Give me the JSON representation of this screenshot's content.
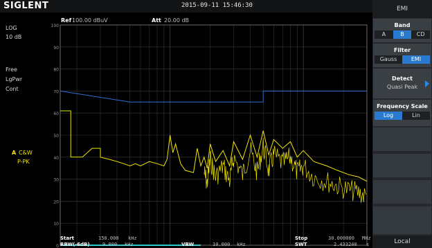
{
  "header": {
    "brand": "SIGLENT",
    "datetime": "2015-09-11  15:46:30",
    "ref_label": "Ref",
    "ref_value": "100.00 dBuV",
    "att_label": "Att",
    "att_value": "20.00 dB"
  },
  "left": {
    "scale_type": "LOG",
    "scale_div": "10 dB",
    "trig": "Free",
    "avg": "LgPwr",
    "sweep": "Cont",
    "trace_letter": "A",
    "trace_mode1": "C&W",
    "trace_mode2": "P-PK"
  },
  "sidebar": {
    "title": "EMI",
    "band": {
      "title": "Band",
      "options": [
        "A",
        "B",
        "CD"
      ],
      "selected": 1
    },
    "filter": {
      "title": "Filter",
      "options": [
        "Gauss",
        "EMI"
      ],
      "selected": 1
    },
    "detect": {
      "title": "Detect",
      "value": "Quasi Peak"
    },
    "freq_scale": {
      "title": "Frequency Scale",
      "options": [
        "Log",
        "Lin"
      ],
      "selected": 0
    },
    "footer": "Local"
  },
  "bottom": {
    "start_label": "Start",
    "start_value": "150.000",
    "start_unit": "kHz",
    "stop_label": "Stop",
    "stop_value": "30.000000",
    "stop_unit": "MHz",
    "rbw_label": "RBW(-6dB)",
    "rbw_value": "9.000",
    "rbw_unit": "kHz",
    "vbw_label": "VBW",
    "vbw_value": "10.000",
    "vbw_unit": "kHz",
    "swt_label": "SWT",
    "swt_value": "2.433240",
    "swt_unit": "s"
  },
  "chart_data": {
    "type": "line",
    "x_scale": "log",
    "x_range_hz": [
      150000,
      30000000
    ],
    "y_range_dbuv": [
      0,
      100
    ],
    "y_ticks": [
      "100",
      "90",
      "80",
      "70",
      "60",
      "50",
      "40",
      "30",
      "20",
      "10",
      "0"
    ],
    "grid": true,
    "series": [
      {
        "color": "#2f6fd6",
        "x_hz": [
          150000,
          500000,
          500000,
          5000000,
          5000000,
          30000000
        ],
        "y_dbuv": [
          70,
          65,
          65,
          65,
          70,
          70
        ]
      },
      {
        "color": "#f2e600",
        "x_hz": [
          150000,
          180000,
          180000,
          220000,
          260000,
          300000,
          300000,
          350000,
          400000,
          450000,
          500000,
          550000,
          600000,
          700000,
          800000,
          900000,
          950000,
          1000000,
          1050000,
          1100000,
          1200000,
          1300000,
          1500000,
          1600000,
          1700000,
          1800000,
          1900000,
          2000000,
          2200000,
          2500000,
          2800000,
          3000000,
          3500000,
          4000000,
          4500000,
          5000000,
          5500000,
          6000000,
          7000000,
          8000000,
          9000000,
          10000000,
          12000000,
          15000000,
          18000000,
          22000000,
          26000000,
          30000000
        ],
        "y_dbuv": [
          61,
          61,
          40,
          40,
          44,
          44,
          40,
          39,
          38,
          37,
          36,
          37,
          36,
          38,
          37,
          36,
          39,
          50,
          42,
          46,
          37,
          34,
          33,
          44,
          36,
          40,
          35,
          46,
          38,
          43,
          36,
          47,
          39,
          50,
          40,
          52,
          41,
          48,
          44,
          47,
          40,
          43,
          38,
          36,
          34,
          32,
          31,
          29
        ]
      },
      {
        "color": "#2ec9c9",
        "x_hz": [
          150000,
          1700000
        ],
        "y_dbuv": [
          0,
          0
        ]
      }
    ]
  }
}
